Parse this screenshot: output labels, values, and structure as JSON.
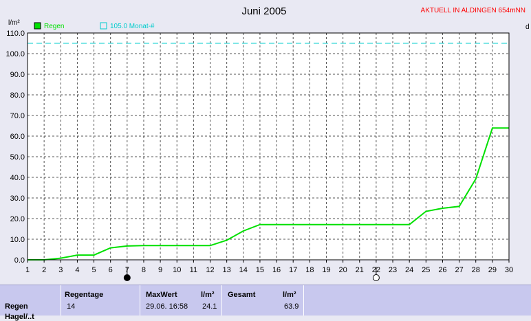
{
  "header": {
    "title": "Juni 2005",
    "station": "AKTUELL IN ALDINGEN 654mNN",
    "y_unit": "l/m²",
    "right_edge_label": "d"
  },
  "legend": {
    "series_label": "Regen",
    "series_color": "#00e000",
    "reference_label": "105.0 Monat-#",
    "reference_color": "#00cccc"
  },
  "chart_data": {
    "type": "line",
    "title": "Juni 2005",
    "ylabel": "l/m²",
    "xlabel": "",
    "xlim": [
      1,
      30
    ],
    "ylim": [
      0,
      110
    ],
    "y_ticks": [
      "0.0",
      "10.0",
      "20.0",
      "30.0",
      "40.0",
      "50.0",
      "60.0",
      "70.0",
      "80.0",
      "90.0",
      "100.0",
      "110.0"
    ],
    "x_ticks": [
      "1",
      "2",
      "3",
      "4",
      "5",
      "6",
      "7",
      "8",
      "9",
      "10",
      "11",
      "12",
      "13",
      "14",
      "15",
      "16",
      "17",
      "18",
      "19",
      "20",
      "21",
      "22",
      "23",
      "24",
      "25",
      "26",
      "27",
      "28",
      "29",
      "30"
    ],
    "grid": true,
    "legend_position": "top-left",
    "series": [
      {
        "name": "Regen",
        "color": "#00e000",
        "x": [
          1,
          2,
          3,
          4,
          5,
          6,
          7,
          8,
          9,
          10,
          11,
          12,
          13,
          14,
          15,
          16,
          17,
          18,
          19,
          20,
          21,
          22,
          23,
          24,
          25,
          26,
          27,
          28,
          29,
          30
        ],
        "y": [
          0,
          0,
          0.8,
          2.3,
          2.3,
          5.8,
          6.7,
          6.9,
          6.9,
          6.9,
          6.9,
          6.9,
          9.5,
          14,
          17.1,
          17.1,
          17.1,
          17.1,
          17.1,
          17.1,
          17.1,
          17.1,
          17.1,
          17.1,
          23.5,
          25,
          25.9,
          39.2,
          63.9,
          63.9
        ]
      }
    ],
    "reference_line": {
      "label": "105.0 Monat-#",
      "value": 105,
      "color": "#00cccc"
    },
    "moon_phases": [
      {
        "day": 7,
        "phase": "new"
      },
      {
        "day": 22,
        "phase": "full"
      }
    ]
  },
  "stats": {
    "row_label": "Regen",
    "row_label_2": "Hagel/..t",
    "regentage_header": "Regentage",
    "regentage_value": "14",
    "maxwert_header": "MaxWert",
    "maxwert_unit": "l/m²",
    "maxwert_date": "29.06.  16:58",
    "maxwert_value": "24.1",
    "gesamt_header": "Gesamt",
    "gesamt_unit": "l/m²",
    "gesamt_value": "63.9"
  }
}
